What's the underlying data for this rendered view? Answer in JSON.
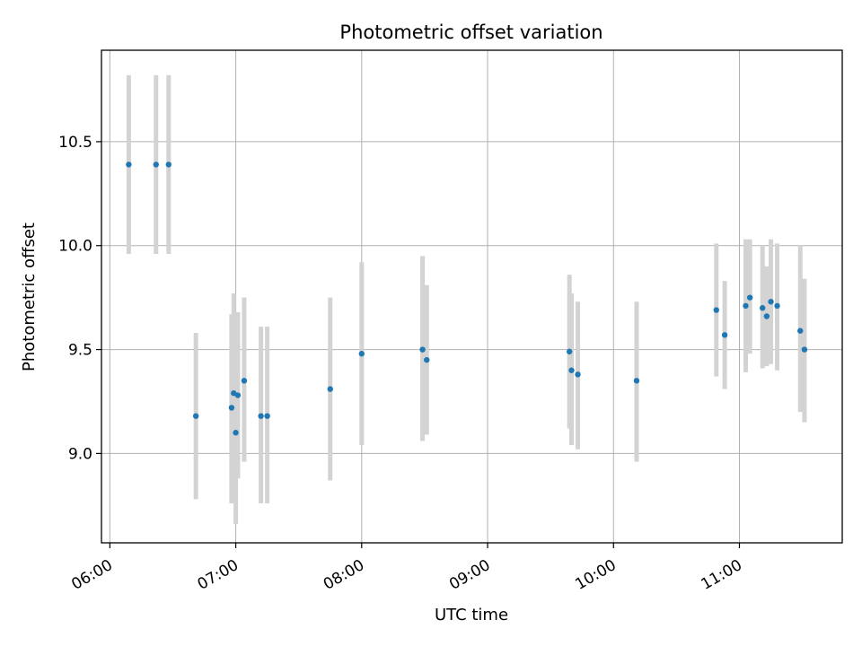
{
  "chart_data": {
    "type": "scatter",
    "title": "Photometric offset variation",
    "xlabel": "UTC time",
    "ylabel": "Photometric offset",
    "x_ticks": [
      "06:00",
      "07:00",
      "08:00",
      "09:00",
      "10:00",
      "11:00"
    ],
    "y_ticks": [
      "9.0",
      "9.5",
      "10.0",
      "10.5"
    ],
    "xlim": [
      "05:56",
      "11:49"
    ],
    "ylim": [
      8.57,
      10.94
    ],
    "grid": true,
    "colors": {
      "points": "#1f77b4",
      "errorbars": "#d3d3d3",
      "grid": "#b0b0b0"
    },
    "points": [
      {
        "x": "06:09",
        "y": 10.39,
        "ylow": 9.96,
        "yhigh": 10.82
      },
      {
        "x": "06:22",
        "y": 10.39,
        "ylow": 9.96,
        "yhigh": 10.82
      },
      {
        "x": "06:28",
        "y": 10.39,
        "ylow": 9.96,
        "yhigh": 10.82
      },
      {
        "x": "06:41",
        "y": 9.18,
        "ylow": 8.78,
        "yhigh": 9.58
      },
      {
        "x": "06:58",
        "y": 9.22,
        "ylow": 8.76,
        "yhigh": 9.67
      },
      {
        "x": "06:59",
        "y": 9.29,
        "ylow": 8.81,
        "yhigh": 9.77
      },
      {
        "x": "07:00",
        "y": 9.1,
        "ylow": 8.66,
        "yhigh": 9.55
      },
      {
        "x": "07:01",
        "y": 9.28,
        "ylow": 8.88,
        "yhigh": 9.68
      },
      {
        "x": "07:04",
        "y": 9.35,
        "ylow": 8.96,
        "yhigh": 9.75
      },
      {
        "x": "07:12",
        "y": 9.18,
        "ylow": 8.76,
        "yhigh": 9.61
      },
      {
        "x": "07:15",
        "y": 9.18,
        "ylow": 8.76,
        "yhigh": 9.61
      },
      {
        "x": "07:45",
        "y": 9.31,
        "ylow": 8.87,
        "yhigh": 9.75
      },
      {
        "x": "08:00",
        "y": 9.48,
        "ylow": 9.04,
        "yhigh": 9.92
      },
      {
        "x": "08:29",
        "y": 9.5,
        "ylow": 9.06,
        "yhigh": 9.95
      },
      {
        "x": "08:31",
        "y": 9.45,
        "ylow": 9.09,
        "yhigh": 9.81
      },
      {
        "x": "09:39",
        "y": 9.49,
        "ylow": 9.12,
        "yhigh": 9.86
      },
      {
        "x": "09:40",
        "y": 9.4,
        "ylow": 9.04,
        "yhigh": 9.77
      },
      {
        "x": "09:43",
        "y": 9.38,
        "ylow": 9.02,
        "yhigh": 9.73
      },
      {
        "x": "10:11",
        "y": 9.35,
        "ylow": 8.96,
        "yhigh": 9.73
      },
      {
        "x": "10:49",
        "y": 9.69,
        "ylow": 9.37,
        "yhigh": 10.01
      },
      {
        "x": "10:53",
        "y": 9.57,
        "ylow": 9.31,
        "yhigh": 9.83
      },
      {
        "x": "11:03",
        "y": 9.71,
        "ylow": 9.39,
        "yhigh": 10.03
      },
      {
        "x": "11:05",
        "y": 9.75,
        "ylow": 9.48,
        "yhigh": 10.03
      },
      {
        "x": "11:11",
        "y": 9.7,
        "ylow": 9.41,
        "yhigh": 10.0
      },
      {
        "x": "11:13",
        "y": 9.66,
        "ylow": 9.42,
        "yhigh": 9.9
      },
      {
        "x": "11:15",
        "y": 9.73,
        "ylow": 9.43,
        "yhigh": 10.03
      },
      {
        "x": "11:18",
        "y": 9.71,
        "ylow": 9.4,
        "yhigh": 10.01
      },
      {
        "x": "11:29",
        "y": 9.59,
        "ylow": 9.2,
        "yhigh": 10.0
      },
      {
        "x": "11:31",
        "y": 9.5,
        "ylow": 9.15,
        "yhigh": 9.84
      }
    ]
  }
}
